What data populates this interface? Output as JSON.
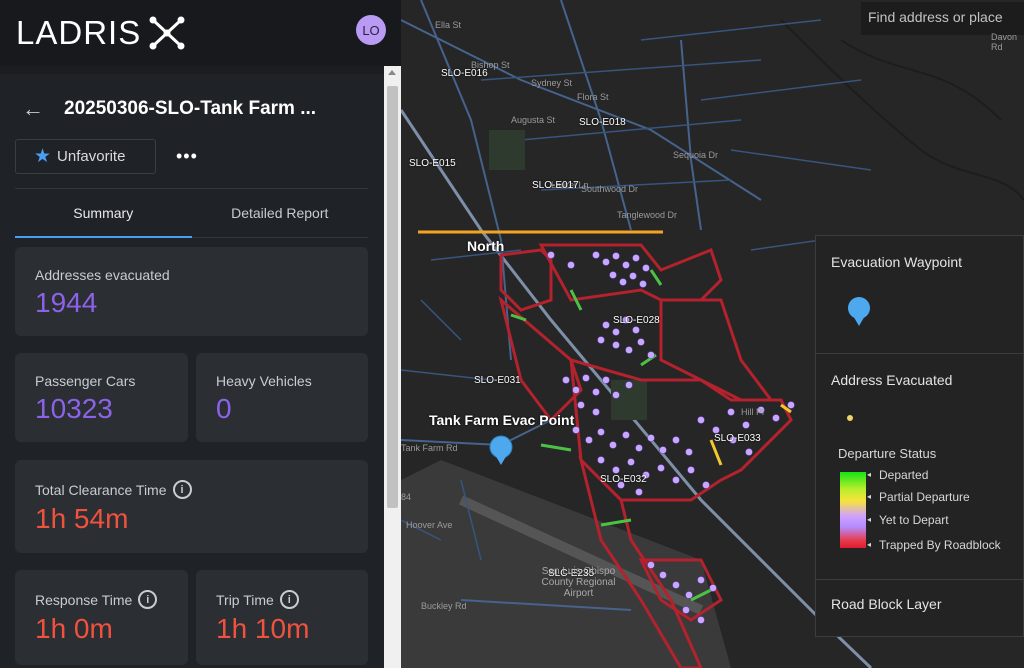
{
  "app": {
    "brand": "LADRIS",
    "user_initials": "LO"
  },
  "header": {
    "back_icon": "arrow-left-icon",
    "title": "20250306-SLO-Tank Farm ...",
    "favorite_label": "Unfavorite",
    "more_label": "•••"
  },
  "tabs": [
    {
      "label": "Summary",
      "active": true
    },
    {
      "label": "Detailed Report",
      "active": false
    }
  ],
  "stats": {
    "addresses_evacuated": {
      "label": "Addresses evacuated",
      "value": "1944"
    },
    "passenger_cars": {
      "label": "Passenger Cars",
      "value": "10323"
    },
    "heavy_vehicles": {
      "label": "Heavy Vehicles",
      "value": "0"
    },
    "total_clearance_time": {
      "label": "Total Clearance Time",
      "value": "1h 54m"
    },
    "response_time": {
      "label": "Response Time",
      "value": "1h 0m"
    },
    "trip_time": {
      "label": "Trip Time",
      "value": "1h 10m"
    }
  },
  "map": {
    "search_placeholder": "Find address or place",
    "north_label": "North",
    "evac_point_label": "Tank Farm Evac Point",
    "zone_labels": [
      "SLO-E016",
      "SLO-E018",
      "SLO-E015",
      "SLO-E017",
      "SLO-E028",
      "SLO-E031",
      "SLO-E033",
      "SLO-E032",
      "SLC-E235"
    ],
    "streets": [
      "Ella St",
      "Bishop St",
      "Sydney St",
      "Augusta St",
      "Flora St",
      "Southwood Dr",
      "Tanglewood Dr",
      "Sequoia Dr",
      "Laurel Ln",
      "Tank Farm Rd",
      "Buckley Rd",
      "Hoover Ave",
      "Hill Pl",
      "Davon Rd"
    ],
    "airport_label": "San Luis Obispo County Regional Airport",
    "edge_label": "84"
  },
  "legend": {
    "waypoint_title": "Evacuation Waypoint",
    "address_title": "Address Evacuated",
    "departure_status_title": "Departure Status",
    "statuses": [
      "Departed",
      "Partial Departure",
      "Yet to Depart",
      "Trapped By Roadblock"
    ],
    "roadblock_title": "Road Block Layer"
  },
  "colors": {
    "purple_value": "#8c63e8",
    "red_value": "#f0523e",
    "accent_blue": "#4a9ff5",
    "route_red": "#b3222d",
    "marker_lavender": "#c9a6ff"
  }
}
